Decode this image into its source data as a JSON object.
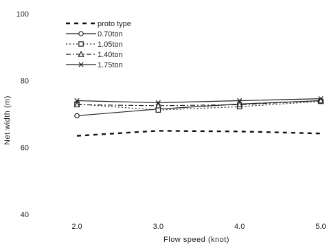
{
  "chart_data": {
    "type": "line",
    "title": "",
    "xlabel": "Flow  speed (knot)",
    "ylabel": "Net width (m)",
    "x": [
      2.0,
      3.0,
      4.0,
      5.0
    ],
    "x_tick_labels": [
      "2.0",
      "3.0",
      "4.0",
      "5.0"
    ],
    "xlim": [
      2.0,
      5.0
    ],
    "ylim": [
      40,
      100
    ],
    "y_ticks": [
      40,
      60,
      80,
      100
    ],
    "y_tick_labels": [
      "40",
      "60",
      "80",
      "100"
    ],
    "grid": false,
    "legend_position": "top-left",
    "series": [
      {
        "name": "proto type",
        "values": [
          63.5,
          65.0,
          64.8,
          64.2
        ],
        "color": "#111111",
        "dash": "6,6",
        "width": 2.4,
        "marker": "none"
      },
      {
        "name": "0.70ton",
        "values": [
          69.5,
          71.5,
          73.0,
          74.0
        ],
        "color": "#222222",
        "dash": "",
        "width": 1.2,
        "marker": "circle"
      },
      {
        "name": "1.05ton",
        "values": [
          73.0,
          71.2,
          72.2,
          73.8
        ],
        "color": "#222222",
        "dash": "2,3",
        "width": 1.2,
        "marker": "square"
      },
      {
        "name": "1.40ton",
        "values": [
          72.8,
          72.5,
          72.8,
          74.0
        ],
        "color": "#222222",
        "dash": "7,3,2,3",
        "width": 1.2,
        "marker": "triangle"
      },
      {
        "name": "1.75ton",
        "values": [
          74.0,
          73.4,
          74.0,
          74.6
        ],
        "color": "#222222",
        "dash": "",
        "width": 1.2,
        "marker": "cross"
      }
    ]
  }
}
